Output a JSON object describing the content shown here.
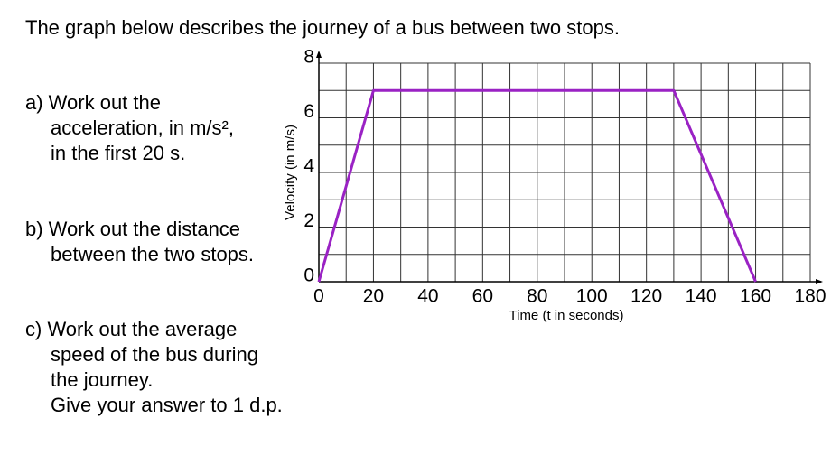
{
  "heading": "The graph below describes the journey of a bus between two stops.",
  "questions": [
    {
      "lines": [
        "a) Work out the",
        "acceleration, in m/s²,",
        "in the first 20 s."
      ]
    },
    {
      "lines": [
        "b) Work out the distance",
        "between the two stops."
      ]
    },
    {
      "lines": [
        "c) Work out the average",
        "speed of the bus during",
        "the journey.",
        "Give your answer to 1 d.p."
      ]
    }
  ],
  "chart_data": {
    "type": "line",
    "x": [
      0,
      20,
      130,
      160
    ],
    "values": [
      0,
      7,
      7,
      0
    ],
    "color": "#9a22c4",
    "xlabel": "Time (t in seconds)",
    "ylabel": "Velocity (in m/s)",
    "xlim": [
      0,
      180
    ],
    "ylim": [
      0,
      8
    ],
    "xticks": [
      0,
      20,
      40,
      60,
      80,
      100,
      120,
      140,
      160,
      180
    ],
    "yticks": [
      0,
      2,
      4,
      6,
      8
    ],
    "xgrid_step": 10,
    "ygrid_step": 1,
    "grid": true
  }
}
